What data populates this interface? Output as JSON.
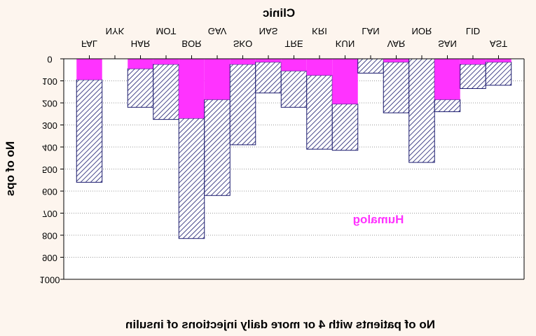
{
  "chart_data": {
    "type": "bar",
    "title": "Clinic",
    "xlabel": "No of patients with 4 or more daily injections of insulin",
    "ylabel": "No of ops",
    "ylim": [
      0,
      1000
    ],
    "yticks": [
      "0",
      "100",
      "200",
      "300",
      "400",
      "500",
      "600",
      "700",
      "800",
      "900",
      "1000"
    ],
    "grid": true,
    "series_label": "Humalog",
    "categories_upper": [
      "NYK",
      "MOT",
      "GAV",
      "NAS",
      "KRI",
      "LAN",
      "NOR",
      "LID"
    ],
    "categories_lower": [
      "FAL",
      "HAR",
      "BOR",
      "SKO",
      "TRE",
      "KUN",
      "VAR",
      "SAN",
      "AST"
    ],
    "bars": [
      {
        "total": 560,
        "humalog": 95
      },
      {
        "total": 0,
        "humalog": 0
      },
      {
        "total": 220,
        "humalog": 45
      },
      {
        "total": 275,
        "humalog": 25
      },
      {
        "total": 815,
        "humalog": 270
      },
      {
        "total": 620,
        "humalog": 185
      },
      {
        "total": 390,
        "humalog": 25
      },
      {
        "total": 155,
        "humalog": 15
      },
      {
        "total": 220,
        "humalog": 55
      },
      {
        "total": 410,
        "humalog": 75
      },
      {
        "total": 415,
        "humalog": 205
      },
      {
        "total": 65,
        "humalog": 0
      },
      {
        "total": 245,
        "humalog": 15
      },
      {
        "total": 470,
        "humalog": 0
      },
      {
        "total": 240,
        "humalog": 185
      },
      {
        "total": 135,
        "humalog": 25
      },
      {
        "total": 120,
        "humalog": 15
      }
    ],
    "colors": {
      "humalog": "#ff33ff",
      "hatch": "#1a1a6e",
      "grid": "#999999"
    }
  }
}
